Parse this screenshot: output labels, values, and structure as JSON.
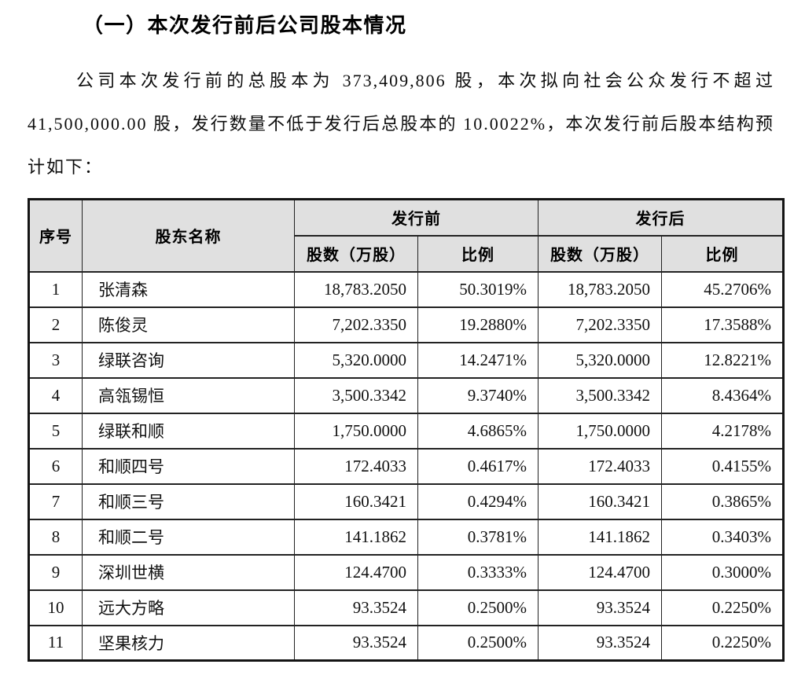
{
  "title": "（一）本次发行前后公司股本情况",
  "paragraph": "公司本次发行前的总股本为 373,409,806 股，本次拟向社会公众发行不超过 41,500,000.00 股，发行数量不低于发行后总股本的 10.0022%，本次发行前后股本结构预计如下：",
  "table": {
    "headers": {
      "index": "序号",
      "name": "股东名称",
      "pre": "发行前",
      "post": "发行后",
      "shares": "股数（万股）",
      "ratio": "比例"
    },
    "rows": [
      {
        "no": "1",
        "name": "张清森",
        "pre_shares": "18,783.2050",
        "pre_ratio": "50.3019%",
        "post_shares": "18,783.2050",
        "post_ratio": "45.2706%"
      },
      {
        "no": "2",
        "name": "陈俊灵",
        "pre_shares": "7,202.3350",
        "pre_ratio": "19.2880%",
        "post_shares": "7,202.3350",
        "post_ratio": "17.3588%"
      },
      {
        "no": "3",
        "name": "绿联咨询",
        "pre_shares": "5,320.0000",
        "pre_ratio": "14.2471%",
        "post_shares": "5,320.0000",
        "post_ratio": "12.8221%"
      },
      {
        "no": "4",
        "name": "高瓴锡恒",
        "pre_shares": "3,500.3342",
        "pre_ratio": "9.3740%",
        "post_shares": "3,500.3342",
        "post_ratio": "8.4364%"
      },
      {
        "no": "5",
        "name": "绿联和顺",
        "pre_shares": "1,750.0000",
        "pre_ratio": "4.6865%",
        "post_shares": "1,750.0000",
        "post_ratio": "4.2178%"
      },
      {
        "no": "6",
        "name": "和顺四号",
        "pre_shares": "172.4033",
        "pre_ratio": "0.4617%",
        "post_shares": "172.4033",
        "post_ratio": "0.4155%"
      },
      {
        "no": "7",
        "name": "和顺三号",
        "pre_shares": "160.3421",
        "pre_ratio": "0.4294%",
        "post_shares": "160.3421",
        "post_ratio": "0.3865%"
      },
      {
        "no": "8",
        "name": "和顺二号",
        "pre_shares": "141.1862",
        "pre_ratio": "0.3781%",
        "post_shares": "141.1862",
        "post_ratio": "0.3403%"
      },
      {
        "no": "9",
        "name": "深圳世横",
        "pre_shares": "124.4700",
        "pre_ratio": "0.3333%",
        "post_shares": "124.4700",
        "post_ratio": "0.3000%"
      },
      {
        "no": "10",
        "name": "远大方略",
        "pre_shares": "93.3524",
        "pre_ratio": "0.2500%",
        "post_shares": "93.3524",
        "post_ratio": "0.2250%"
      },
      {
        "no": "11",
        "name": "坚果核力",
        "pre_shares": "93.3524",
        "pre_ratio": "0.2500%",
        "post_shares": "93.3524",
        "post_ratio": "0.2250%"
      }
    ]
  },
  "colors": {
    "header_bg": "#e0e0e0",
    "border": "#141414",
    "text": "#111111"
  }
}
